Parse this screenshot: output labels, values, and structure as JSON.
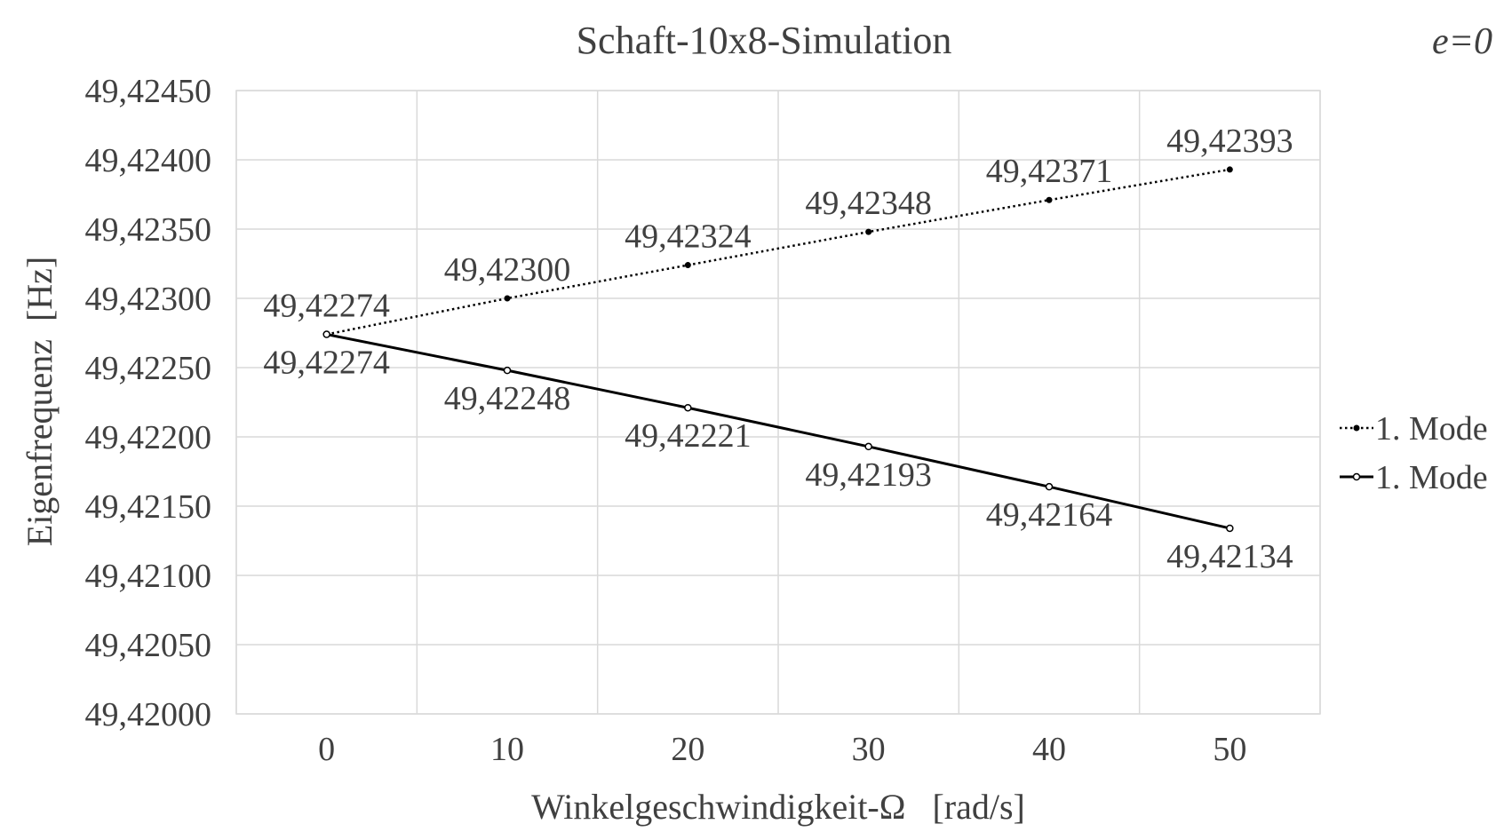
{
  "chart_data": {
    "type": "line",
    "title": "Schaft-10x8-Simulation",
    "corner_label": "e=0",
    "xlabel": "Winkelgeschwindigkeit-Ω   [rad/s]",
    "ylabel": "Eigenfrequenz  [Hz]",
    "x": [
      0,
      10,
      20,
      30,
      40,
      50
    ],
    "xlim": [
      -5,
      55
    ],
    "x_ticks": [
      "0",
      "10",
      "20",
      "30",
      "40",
      "50"
    ],
    "ylim": [
      49.42,
      49.4245
    ],
    "y_ticks": [
      "49,42000",
      "49,42050",
      "49,42100",
      "49,42150",
      "49,42200",
      "49,42250",
      "49,42300",
      "49,42350",
      "49,42400",
      "49,42450"
    ],
    "grid": true,
    "legend_position": "right",
    "series": [
      {
        "name": "1. Mode",
        "style": "dotted",
        "marker": "filled-circle",
        "color": "#000000",
        "label_position": "above",
        "values": [
          49.42274,
          49.423,
          49.42324,
          49.42348,
          49.42371,
          49.42393
        ],
        "labels": [
          "49,42274",
          "49,42300",
          "49,42324",
          "49,42348",
          "49,42371",
          "49,42393"
        ]
      },
      {
        "name": "1. Mode",
        "style": "solid",
        "marker": "open-circle",
        "color": "#000000",
        "label_position": "below",
        "values": [
          49.42274,
          49.42248,
          49.42221,
          49.42193,
          49.42164,
          49.42134
        ],
        "labels": [
          "49,42274",
          "49,42248",
          "49,42221",
          "49,42193",
          "49,42164",
          "49,42134"
        ]
      }
    ]
  }
}
